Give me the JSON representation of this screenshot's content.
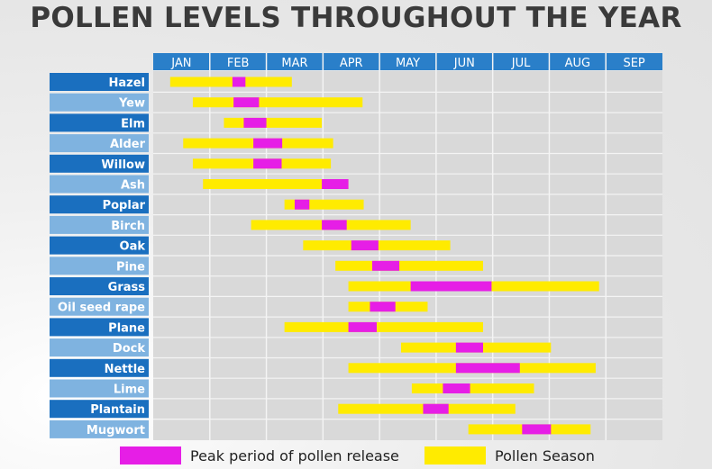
{
  "title": "POLLEN LEVELS THROUGHOUT THE YEAR",
  "colors": {
    "header": "#2a7fc9",
    "row_dark": "#1a6fbf",
    "row_light": "#7fb3e0",
    "grid_bg": "#d9d9d9",
    "grid_line": "#f4f4f4",
    "season": "#ffeb00",
    "peak": "#e61ee6"
  },
  "chart_data": {
    "type": "gantt",
    "months": [
      "JAN",
      "FEB",
      "MAR",
      "APR",
      "MAY",
      "JUN",
      "JUL",
      "AUG",
      "SEP"
    ],
    "x_unit": "month (0 = start of January)",
    "xlim": [
      0,
      9
    ],
    "legend": [
      {
        "key": "peak",
        "label": "Peak period of pollen release"
      },
      {
        "key": "season",
        "label": "Pollen Season"
      }
    ],
    "rows": [
      {
        "name": "Hazel",
        "season": [
          0.3,
          2.45
        ],
        "peak": [
          1.4,
          1.63
        ]
      },
      {
        "name": "Yew",
        "season": [
          0.7,
          3.7
        ],
        "peak": [
          1.42,
          1.87
        ]
      },
      {
        "name": "Elm",
        "season": [
          1.25,
          2.98
        ],
        "peak": [
          1.6,
          2.0
        ]
      },
      {
        "name": "Alder",
        "season": [
          0.53,
          3.18
        ],
        "peak": [
          1.77,
          2.28
        ]
      },
      {
        "name": "Willow",
        "season": [
          0.7,
          3.14
        ],
        "peak": [
          1.77,
          2.27
        ]
      },
      {
        "name": "Ash",
        "season": [
          0.88,
          3.45
        ],
        "peak": [
          2.98,
          3.45
        ]
      },
      {
        "name": "Poplar",
        "season": [
          2.32,
          3.72
        ],
        "peak": [
          2.5,
          2.76
        ]
      },
      {
        "name": "Birch",
        "season": [
          1.73,
          4.55
        ],
        "peak": [
          2.98,
          3.42
        ]
      },
      {
        "name": "Oak",
        "season": [
          2.65,
          5.25
        ],
        "peak": [
          3.5,
          3.98
        ]
      },
      {
        "name": "Pine",
        "season": [
          3.22,
          5.83
        ],
        "peak": [
          3.87,
          4.35
        ]
      },
      {
        "name": "Grass",
        "season": [
          3.45,
          7.88
        ],
        "peak": [
          4.55,
          5.98
        ]
      },
      {
        "name": "Oil seed rape",
        "season": [
          3.45,
          4.85
        ],
        "peak": [
          3.83,
          4.28
        ]
      },
      {
        "name": "Plane",
        "season": [
          2.32,
          5.83
        ],
        "peak": [
          3.45,
          3.95
        ]
      },
      {
        "name": "Dock",
        "season": [
          4.38,
          7.03
        ],
        "peak": [
          5.35,
          5.83
        ]
      },
      {
        "name": "Nettle",
        "season": [
          3.45,
          7.82
        ],
        "peak": [
          5.35,
          6.48
        ]
      },
      {
        "name": "Lime",
        "season": [
          4.57,
          6.73
        ],
        "peak": [
          5.12,
          5.6
        ]
      },
      {
        "name": "Plantain",
        "season": [
          3.27,
          6.4
        ],
        "peak": [
          4.77,
          5.22
        ]
      },
      {
        "name": "Mugwort",
        "season": [
          5.57,
          7.73
        ],
        "peak": [
          6.52,
          7.03
        ]
      }
    ]
  }
}
